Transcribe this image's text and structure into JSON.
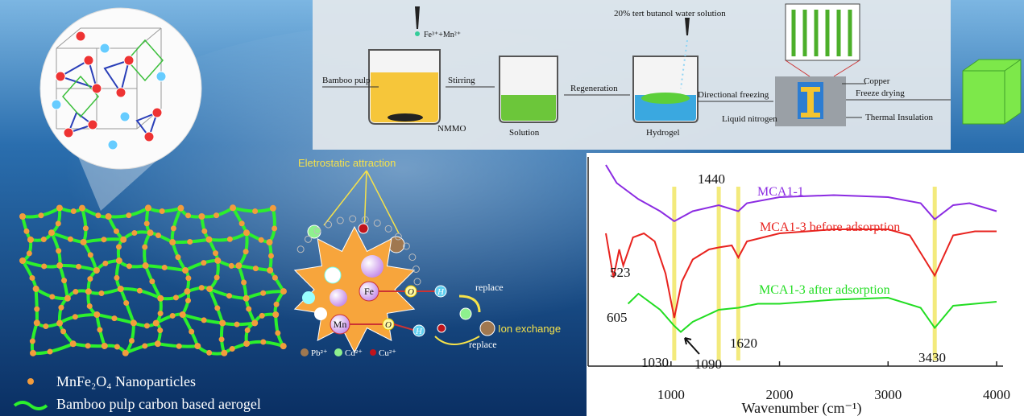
{
  "process": {
    "reagent": "Fe³⁺+Mn²⁺",
    "solvent": "20% tert butanol water solution",
    "input": "Bamboo pulp",
    "steps": [
      "Stirring",
      "Regeneration",
      "Directional freezing",
      "Freeze drying"
    ],
    "stages": [
      "NMMO",
      "Solution",
      "Hydrogel"
    ],
    "apparatus": [
      "Copper",
      "Liquid nitrogen",
      "Thermal Insulation"
    ]
  },
  "legend": [
    "MnFe₂O₄ Nanoparticles",
    "Bamboo pulp carbon based aerogel"
  ],
  "mechanism": {
    "title": "Eletrostatic attraction",
    "atoms": [
      "Fe",
      "Mn"
    ],
    "oxygen": "O",
    "hydrogen": "H",
    "replace": "replace",
    "exchange": "Ion exchange",
    "ions": [
      "Pb²⁺",
      "Cd²⁺",
      "Cu²⁺"
    ]
  },
  "chart_data": {
    "type": "line",
    "x_label": "Wavenumber (cm⁻¹)",
    "xlim": [
      400,
      4000
    ],
    "xticks": [
      1000,
      2000,
      3000,
      4000
    ],
    "ylim": [
      0,
      100
    ],
    "series": [
      {
        "name": "MCA1-1",
        "color": "#8b2be2",
        "x": [
          400,
          500,
          700,
          900,
          1030,
          1200,
          1440,
          1620,
          1700,
          2000,
          2500,
          3000,
          3300,
          3430,
          3600,
          3750,
          4000
        ],
        "values": [
          98,
          89,
          81,
          75,
          70,
          75,
          78,
          75,
          79,
          82,
          83,
          82,
          79,
          71,
          78,
          79,
          75
        ]
      },
      {
        "name": "MCA1-3 before adsorption",
        "color": "#e8231f",
        "x": [
          400,
          470,
          523,
          560,
          650,
          750,
          850,
          950,
          1030,
          1100,
          1200,
          1350,
          1440,
          1560,
          1620,
          1700,
          2000,
          2500,
          3000,
          3200,
          3430,
          3600,
          3800,
          4000
        ],
        "values": [
          64,
          42,
          56,
          48,
          62,
          64,
          60,
          44,
          22,
          40,
          51,
          56,
          57,
          58,
          52,
          60,
          64,
          66,
          66,
          63,
          43,
          63,
          65,
          65
        ]
      },
      {
        "name": "MCA1-3 after adsorption",
        "color": "#22dd22",
        "x": [
          605,
          700,
          900,
          1030,
          1090,
          1200,
          1440,
          1620,
          1800,
          2000,
          2500,
          3000,
          3300,
          3430,
          3600,
          4000
        ],
        "values": [
          29,
          34,
          26,
          18,
          15,
          20,
          26,
          27,
          29,
          29,
          31,
          32,
          27,
          17,
          28,
          30
        ]
      }
    ],
    "peaks": [
      523,
      605,
      1030,
      1090,
      1440,
      1620,
      3430
    ],
    "bands": [
      1030,
      1440,
      1620,
      3430
    ],
    "band_color": "#f3ea7c"
  }
}
